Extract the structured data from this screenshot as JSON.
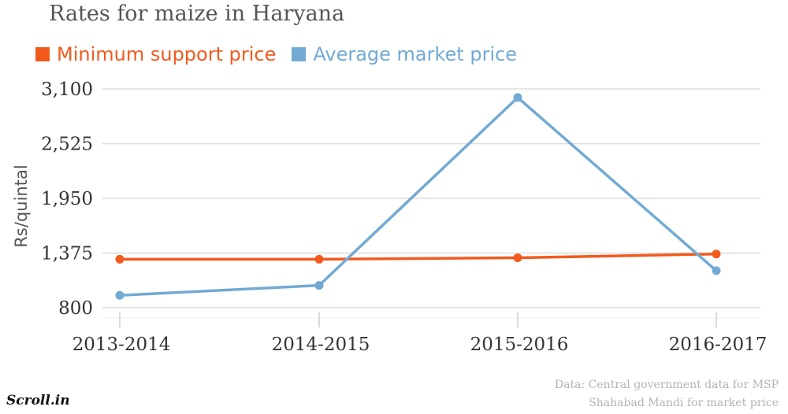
{
  "chart_data": {
    "type": "line",
    "title": "Rates for maize in Haryana",
    "xlabel": "",
    "ylabel": "Rs/quintal",
    "categories": [
      "2013-2014",
      "2014-2015",
      "2015-2016",
      "2016-2017"
    ],
    "series": [
      {
        "name": "Minimum support price",
        "color": "#f25a1d",
        "values": [
          1310,
          1310,
          1325,
          1365
        ]
      },
      {
        "name": "Average market price",
        "color": "#72aad4",
        "values": [
          930,
          1035,
          3010,
          1190
        ]
      }
    ],
    "ylim": [
      800,
      3100
    ],
    "yticks": [
      800,
      1375,
      1950,
      2525,
      3100
    ],
    "ytick_labels": [
      "800",
      "1,375",
      "1,950",
      "2,525",
      "3,100"
    ],
    "grid": true,
    "legend_position": "top-left"
  },
  "source": {
    "line1": "Data: Central government data for MSP",
    "line2": "Shahabad Mandi for market price"
  },
  "logo": "Scroll.in",
  "colors": {
    "msp": "#f25a1d",
    "market": "#72aad4",
    "grid": "#dddddd",
    "tick_text": "#333333",
    "axis_label": "#555555"
  }
}
